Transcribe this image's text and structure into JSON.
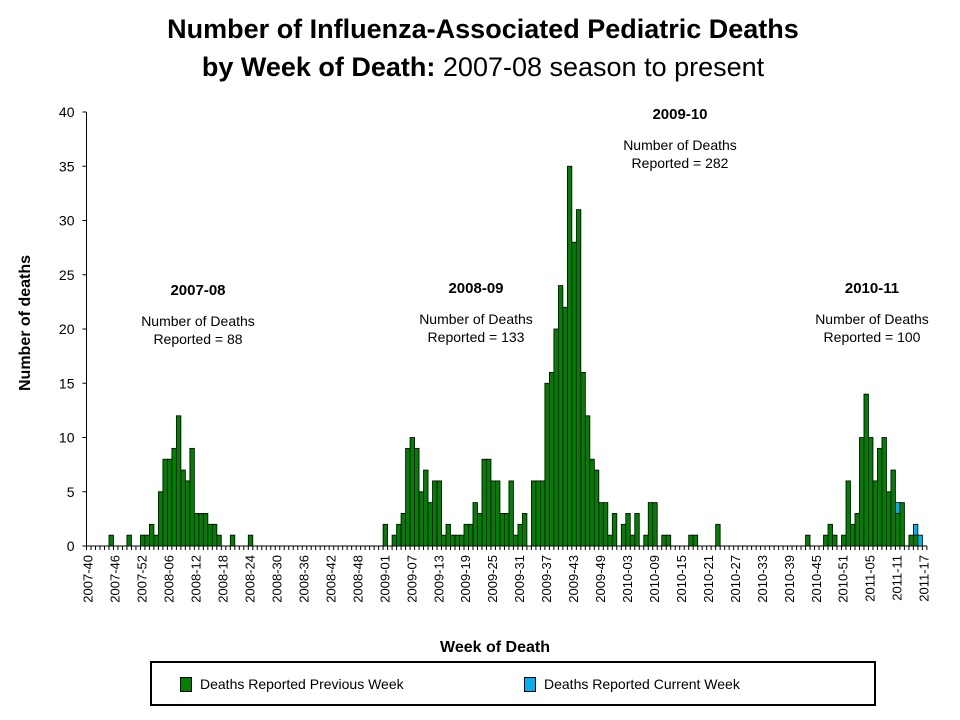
{
  "title": {
    "line1": "Number of Influenza-Associated Pediatric Deaths",
    "line2_bold": "by Week of Death:",
    "line2_rest": " 2007-08 season to present"
  },
  "chart_data": {
    "type": "bar",
    "stacked": true,
    "xlabel": "Week of Death",
    "ylabel": "Number of deaths",
    "ylim": [
      0,
      40
    ],
    "y_ticks": [
      "0",
      "5",
      "10",
      "15",
      "20",
      "25",
      "30",
      "35",
      "40"
    ],
    "grid": false,
    "legend_position": "bottom",
    "categories": [
      "2007-40",
      "2007-41",
      "2007-42",
      "2007-43",
      "2007-44",
      "2007-45",
      "2007-46",
      "2007-47",
      "2007-48",
      "2007-49",
      "2007-50",
      "2007-51",
      "2007-52",
      "2008-01",
      "2008-02",
      "2008-03",
      "2008-04",
      "2008-05",
      "2008-06",
      "2008-07",
      "2008-08",
      "2008-09",
      "2008-10",
      "2008-11",
      "2008-12",
      "2008-13",
      "2008-14",
      "2008-15",
      "2008-16",
      "2008-17",
      "2008-18",
      "2008-19",
      "2008-20",
      "2008-21",
      "2008-22",
      "2008-23",
      "2008-24",
      "2008-25",
      "2008-26",
      "2008-27",
      "2008-28",
      "2008-29",
      "2008-30",
      "2008-31",
      "2008-32",
      "2008-33",
      "2008-34",
      "2008-35",
      "2008-36",
      "2008-37",
      "2008-38",
      "2008-39",
      "2008-40",
      "2008-41",
      "2008-42",
      "2008-43",
      "2008-44",
      "2008-45",
      "2008-46",
      "2008-47",
      "2008-48",
      "2008-49",
      "2008-50",
      "2008-51",
      "2008-52",
      "2008-53",
      "2009-01",
      "2009-02",
      "2009-03",
      "2009-04",
      "2009-05",
      "2009-06",
      "2009-07",
      "2009-08",
      "2009-09",
      "2009-10",
      "2009-11",
      "2009-12",
      "2009-13",
      "2009-14",
      "2009-15",
      "2009-16",
      "2009-17",
      "2009-18",
      "2009-19",
      "2009-20",
      "2009-21",
      "2009-22",
      "2009-23",
      "2009-24",
      "2009-25",
      "2009-26",
      "2009-27",
      "2009-28",
      "2009-29",
      "2009-30",
      "2009-31",
      "2009-32",
      "2009-33",
      "2009-34",
      "2009-35",
      "2009-36",
      "2009-37",
      "2009-38",
      "2009-39",
      "2009-40",
      "2009-41",
      "2009-42",
      "2009-43",
      "2009-44",
      "2009-45",
      "2009-46",
      "2009-47",
      "2009-48",
      "2009-49",
      "2009-50",
      "2009-51",
      "2009-52",
      "2010-01",
      "2010-02",
      "2010-03",
      "2010-04",
      "2010-05",
      "2010-06",
      "2010-07",
      "2010-08",
      "2010-09",
      "2010-10",
      "2010-11",
      "2010-12",
      "2010-13",
      "2010-14",
      "2010-15",
      "2010-16",
      "2010-17",
      "2010-18",
      "2010-19",
      "2010-20",
      "2010-21",
      "2010-22",
      "2010-23",
      "2010-24",
      "2010-25",
      "2010-26",
      "2010-27",
      "2010-28",
      "2010-29",
      "2010-30",
      "2010-31",
      "2010-32",
      "2010-33",
      "2010-34",
      "2010-35",
      "2010-36",
      "2010-37",
      "2010-38",
      "2010-39",
      "2010-40",
      "2010-41",
      "2010-42",
      "2010-43",
      "2010-44",
      "2010-45",
      "2010-46",
      "2010-47",
      "2010-48",
      "2010-49",
      "2010-50",
      "2010-51",
      "2010-52",
      "2011-01",
      "2011-02",
      "2011-03",
      "2011-04",
      "2011-05",
      "2011-06",
      "2011-07",
      "2011-08",
      "2011-09",
      "2011-10",
      "2011-11",
      "2011-12",
      "2011-13",
      "2011-14",
      "2011-15",
      "2011-16",
      "2011-17"
    ],
    "x_tick_every": 6,
    "series": [
      {
        "name": "Deaths Reported Previous Week",
        "color": "#008000",
        "values": [
          0,
          0,
          0,
          0,
          0,
          1,
          0,
          0,
          0,
          1,
          0,
          0,
          1,
          1,
          2,
          1,
          5,
          8,
          8,
          9,
          12,
          7,
          6,
          9,
          3,
          3,
          3,
          2,
          2,
          1,
          0,
          0,
          1,
          0,
          0,
          0,
          1,
          0,
          0,
          0,
          0,
          0,
          0,
          0,
          0,
          0,
          0,
          0,
          0,
          0,
          0,
          0,
          0,
          0,
          0,
          0,
          0,
          0,
          0,
          0,
          0,
          0,
          0,
          0,
          0,
          0,
          2,
          0,
          1,
          2,
          3,
          9,
          10,
          9,
          5,
          7,
          4,
          6,
          6,
          1,
          2,
          1,
          1,
          1,
          2,
          2,
          4,
          3,
          8,
          8,
          6,
          6,
          3,
          3,
          6,
          1,
          2,
          3,
          0,
          6,
          6,
          6,
          15,
          16,
          20,
          24,
          22,
          35,
          28,
          31,
          16,
          12,
          8,
          7,
          4,
          4,
          1,
          3,
          0,
          2,
          3,
          1,
          3,
          0,
          1,
          4,
          4,
          0,
          1,
          1,
          0,
          0,
          0,
          0,
          1,
          1,
          0,
          0,
          0,
          0,
          2,
          0,
          0,
          0,
          0,
          0,
          0,
          0,
          0,
          0,
          0,
          0,
          0,
          0,
          0,
          0,
          0,
          0,
          0,
          0,
          1,
          0,
          0,
          0,
          1,
          2,
          1,
          0,
          1,
          6,
          2,
          3,
          10,
          14,
          10,
          6,
          9,
          10,
          5,
          7,
          3,
          4,
          0,
          1,
          1,
          0,
          0
        ]
      },
      {
        "name": "Deaths Reported Current Week",
        "color": "#00B0F0",
        "values_by_week": {
          "2011-11": 1,
          "2011-15": 1,
          "2011-16": 1
        }
      }
    ],
    "annotations": [
      {
        "season": "2007-08",
        "line1": "Number of Deaths",
        "line2": "Reported = 88"
      },
      {
        "season": "2008-09",
        "line1": "Number of Deaths",
        "line2": "Reported = 133"
      },
      {
        "season": "2009-10",
        "line1": "Number of Deaths",
        "line2": "Reported = 282"
      },
      {
        "season": "2010-11",
        "line1": "Number of Deaths",
        "line2": "Reported = 100"
      }
    ]
  }
}
